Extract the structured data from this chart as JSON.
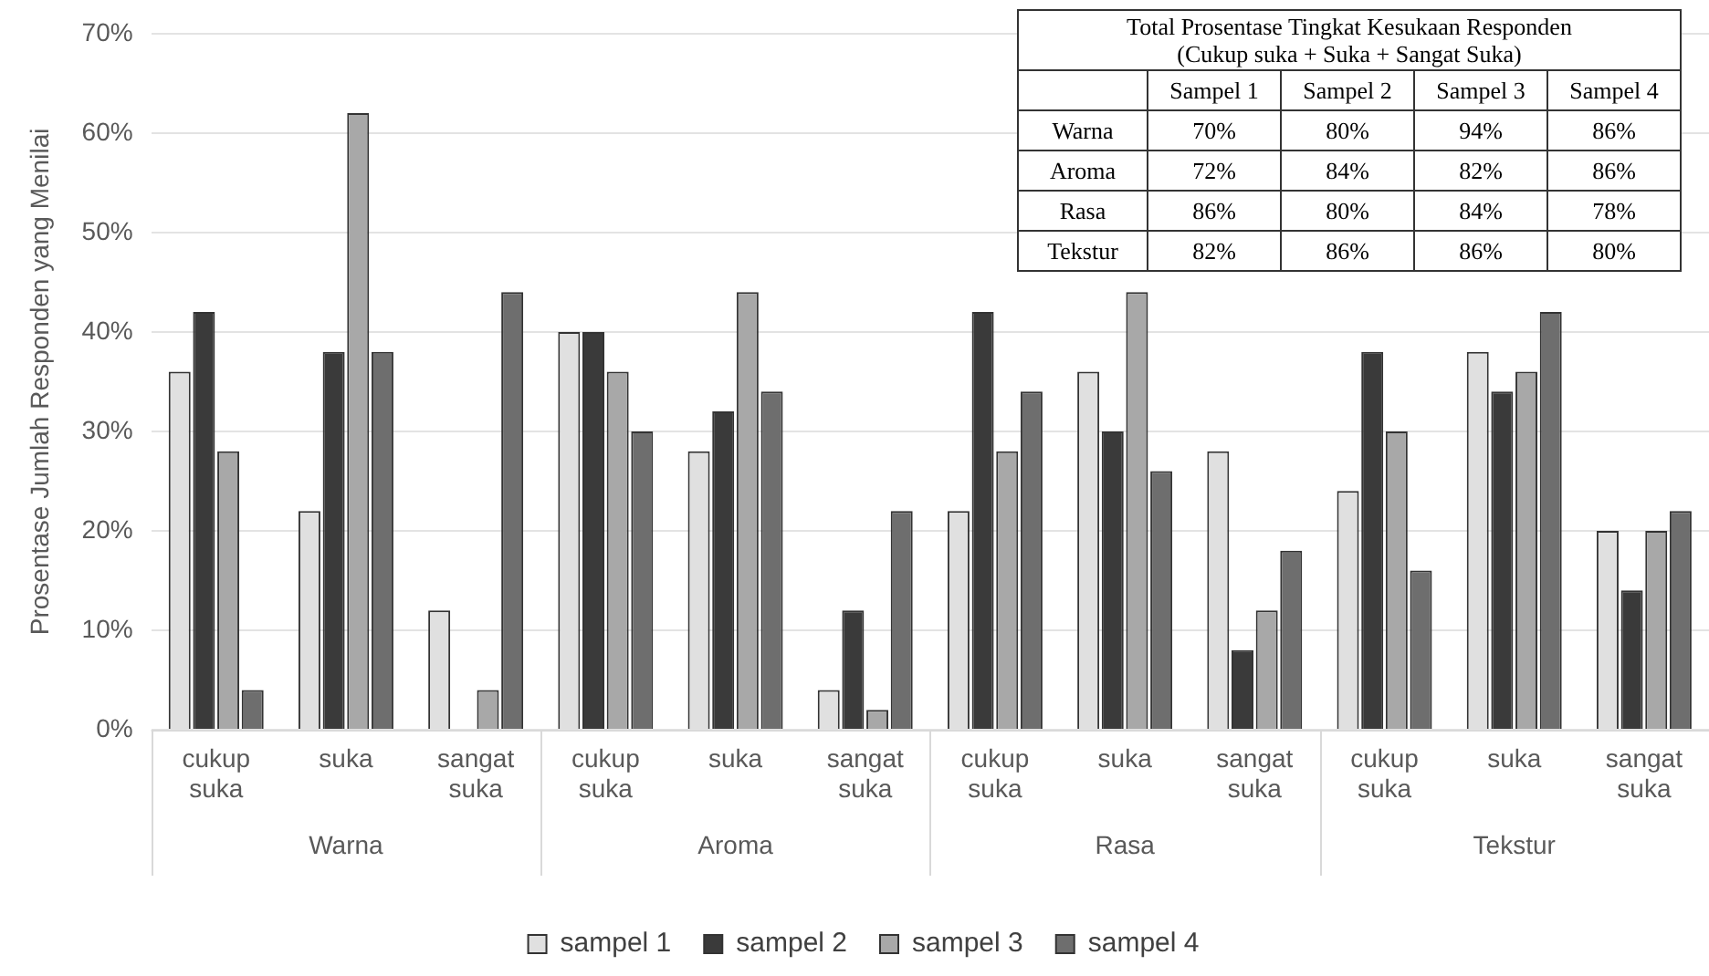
{
  "chart_data": [
    {
      "type": "bar",
      "ylabel": "Prosentase Jumlah Responden yang Menilai",
      "categories": [
        "cukup suka",
        "suka",
        "sangat suka",
        "cukup suka",
        "suka",
        "sangat suka",
        "cukup suka",
        "suka",
        "sangat suka",
        "cukup suka",
        "suka",
        "sangat suka"
      ],
      "series": [
        {
          "name": "sampel 1",
          "color": "#e0e0e0",
          "values": [
            36,
            22,
            12,
            40,
            28,
            4,
            22,
            36,
            28,
            24,
            38,
            20
          ]
        },
        {
          "name": "sampel 2",
          "color": "#3a3a3a",
          "values": [
            42,
            38,
            0,
            40,
            32,
            12,
            42,
            30,
            8,
            38,
            34,
            14
          ]
        },
        {
          "name": "sampel 3",
          "color": "#a8a8a8",
          "values": [
            28,
            62,
            4,
            36,
            44,
            2,
            28,
            44,
            12,
            30,
            36,
            20
          ]
        },
        {
          "name": "sampel 4",
          "color": "#6e6e6e",
          "values": [
            4,
            38,
            44,
            30,
            34,
            22,
            34,
            26,
            18,
            16,
            42,
            22
          ]
        }
      ],
      "ylim": [
        0,
        70
      ],
      "yticks": [
        {
          "value": 0,
          "label": "0%"
        },
        {
          "value": 10,
          "label": "10%"
        },
        {
          "value": 20,
          "label": "20%"
        },
        {
          "value": 30,
          "label": "30%"
        },
        {
          "value": 40,
          "label": "40%"
        },
        {
          "value": 50,
          "label": "50%"
        },
        {
          "value": 60,
          "label": "60%"
        },
        {
          "value": 70,
          "label": "70%"
        }
      ],
      "grid": "y",
      "legend": "bottom",
      "annotations": [
        "Warna",
        "Aroma",
        "Rasa",
        "Tekstur"
      ]
    },
    {
      "type": "other",
      "title": "Total Prosentase Tingkat Kesukaan Responden (Cukup suka + Suka + Sangat Suka)",
      "categories": [
        "Sampel 1",
        "Sampel 2",
        "Sampel 3",
        "Sampel 4"
      ],
      "y_categories": [
        "Warna",
        "Aroma",
        "Rasa",
        "Tekstur"
      ],
      "cell_labels": [
        [
          "70%",
          "80%",
          "94%",
          "86%"
        ],
        [
          "72%",
          "84%",
          "82%",
          "86%"
        ],
        [
          "86%",
          "80%",
          "84%",
          "78%"
        ],
        [
          "82%",
          "86%",
          "86%",
          "80%"
        ]
      ]
    }
  ]
}
